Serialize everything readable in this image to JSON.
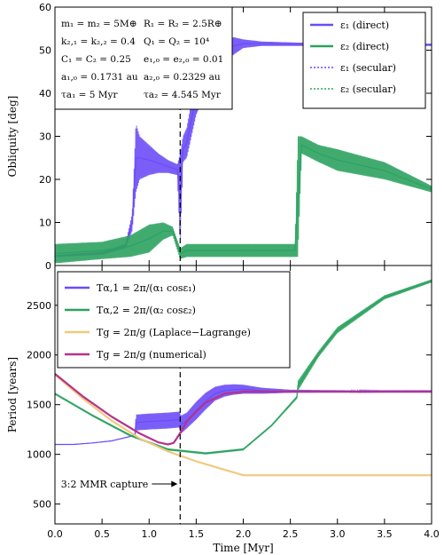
{
  "chart_data": [
    {
      "type": "line",
      "panel": "top",
      "ylabel": "Obliquity [deg]",
      "xlim": [
        0,
        4
      ],
      "ylim": [
        0,
        60
      ],
      "yticks": [
        "0",
        "10",
        "20",
        "30",
        "40",
        "50",
        "60"
      ],
      "grid": false,
      "legend_position": "top-right",
      "legend": [
        "ε₁ (direct)",
        "ε₂ (direct)",
        "ε₁ (secular)",
        "ε₂ (secular)"
      ],
      "params": [
        "m₁ = m₂ = 5M⊕",
        "R₁ = R₂ = 2.5R⊕",
        "k₂,₁ = k₂,₂ = 0.4",
        "Q₁ = Q₂ = 10⁴",
        "C₁ = C₂ = 0.25",
        "e₁,₀ = e₂,₀ = 0.01",
        "a₁,₀ = 0.1731 au",
        "a₂,₀ = 0.2329 au",
        "τa₁ = 5 Myr",
        "τa₂ = 4.545 Myr"
      ],
      "vline_x": 1.33,
      "series": [
        {
          "name": "ε₁ (direct)",
          "color": "#6b4cf6",
          "x": [
            0,
            0.5,
            0.75,
            0.82,
            0.86,
            0.9,
            1.0,
            1.1,
            1.2,
            1.3,
            1.33,
            1.36,
            1.4,
            1.5,
            1.6,
            1.7,
            1.8,
            1.9,
            2.0,
            2.2,
            2.5,
            3.0,
            3.5,
            4.0
          ],
          "low": [
            2,
            2.5,
            4,
            8,
            17,
            20,
            21,
            21.5,
            21.5,
            21,
            4,
            24,
            25,
            35,
            40,
            44,
            47,
            49,
            50.5,
            51,
            51,
            51,
            51,
            51
          ],
          "high": [
            2.4,
            3.2,
            5,
            12,
            33,
            30,
            28,
            26,
            24.5,
            23.5,
            26,
            30,
            32,
            44,
            48,
            51,
            52.5,
            53,
            52.5,
            52,
            51.8,
            51.5,
            51.5,
            51.5
          ]
        },
        {
          "name": "ε₂ (direct)",
          "color": "#2ca25f",
          "x": [
            0,
            0.5,
            0.8,
            1.0,
            1.15,
            1.25,
            1.33,
            1.4,
            1.6,
            2.0,
            2.4,
            2.55,
            2.58,
            2.62,
            2.8,
            3.0,
            3.5,
            4.0
          ],
          "low": [
            0.5,
            1.5,
            2,
            3,
            6,
            7,
            1.5,
            2,
            2,
            2,
            2,
            2,
            2,
            26,
            24,
            22,
            20,
            17
          ],
          "high": [
            5,
            5.5,
            7,
            9.5,
            10,
            9,
            4,
            5,
            5,
            5,
            5,
            5,
            30,
            30,
            28,
            27,
            24,
            18.5
          ]
        }
      ]
    },
    {
      "type": "line",
      "panel": "bottom",
      "xlabel": "Time [Myr]",
      "ylabel": "Period [years]",
      "xlim": [
        0,
        4
      ],
      "ylim": [
        300,
        2900
      ],
      "xticks": [
        "0.0",
        "0.5",
        "1.0",
        "1.5",
        "2.0",
        "2.5",
        "3.0",
        "3.5",
        "4.0"
      ],
      "yticks": [
        "500",
        "1000",
        "1500",
        "2000",
        "2500"
      ],
      "grid": false,
      "legend_position": "top-left",
      "legend": [
        "Tα,1 = 2π/(α₁ cosε₁)",
        "Tα,2 = 2π/(α₂ cosε₂)",
        "Tg = 2π/g (Laplace−Lagrange)",
        "Tg = 2π/g (numerical)"
      ],
      "annotation": "3:2 MMR capture",
      "vline_x": 1.33,
      "series": [
        {
          "name": "Tα,1 = 2π/(α₁ cosε₁)",
          "color": "#6b4cf6",
          "x": [
            0,
            0.2,
            0.4,
            0.6,
            0.8,
            0.85,
            0.86,
            1.0,
            1.2,
            1.32,
            1.34,
            1.4,
            1.5,
            1.6,
            1.7,
            1.8,
            1.9,
            2.0,
            2.2,
            2.5,
            3.0,
            3.5,
            4.0
          ],
          "low": [
            1100,
            1100,
            1115,
            1135,
            1180,
            1200,
            1240,
            1250,
            1260,
            1270,
            1210,
            1260,
            1350,
            1450,
            1540,
            1580,
            1600,
            1610,
            1610,
            1620,
            1625,
            1630,
            1630
          ],
          "high": [
            1100,
            1100,
            1115,
            1135,
            1180,
            1200,
            1400,
            1410,
            1420,
            1430,
            1390,
            1420,
            1530,
            1620,
            1680,
            1700,
            1705,
            1700,
            1670,
            1650,
            1645,
            1640,
            1640
          ]
        },
        {
          "name": "Tα,2 = 2π/(α₂ cosε₂)",
          "color": "#2ca25f",
          "x": [
            0,
            0.4,
            0.8,
            1.2,
            1.6,
            2.0,
            2.3,
            2.57,
            2.58,
            2.8,
            3.0,
            3.5,
            4.0
          ],
          "low": [
            1600,
            1380,
            1180,
            1040,
            1000,
            1040,
            1280,
            1560,
            1640,
            1980,
            2220,
            2560,
            2730
          ],
          "high": [
            1620,
            1400,
            1200,
            1060,
            1020,
            1060,
            1300,
            1590,
            1740,
            2040,
            2280,
            2600,
            2760
          ]
        },
        {
          "name": "Tg = 2π/g (Laplace−Lagrange)",
          "color": "#f0c97e",
          "x": [
            0,
            0.3,
            0.6,
            0.9,
            1.2,
            1.5,
            2.0,
            2.5,
            3.0,
            3.5,
            4.0
          ],
          "y": [
            1800,
            1560,
            1340,
            1160,
            1030,
            930,
            790,
            790,
            790,
            790,
            790
          ]
        },
        {
          "name": "Tg = 2π/g (numerical)",
          "color": "#b5338a",
          "x": [
            0,
            0.3,
            0.6,
            0.9,
            1.1,
            1.2,
            1.26,
            1.3,
            1.34,
            1.4,
            1.5,
            1.6,
            1.8,
            2.0,
            2.5,
            3.0,
            4.0
          ],
          "y": [
            1810,
            1580,
            1380,
            1210,
            1120,
            1100,
            1115,
            1170,
            1230,
            1330,
            1430,
            1520,
            1610,
            1630,
            1630,
            1630,
            1630
          ]
        }
      ]
    }
  ]
}
